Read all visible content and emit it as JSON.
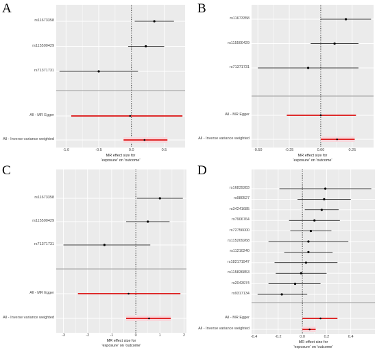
{
  "chart_data": [
    {
      "panel": "A",
      "type": "forest",
      "snps": [
        {
          "label": "rs11673358",
          "est": 0.35,
          "lo": 0.05,
          "hi": 0.65
        },
        {
          "label": "rs115500429",
          "est": 0.22,
          "lo": -0.05,
          "hi": 0.5
        },
        {
          "label": "rs71371731",
          "est": -0.5,
          "lo": -1.1,
          "hi": 0.1
        }
      ],
      "summary": [
        {
          "label": "All - MR Egger",
          "est": -0.02,
          "lo": -0.92,
          "hi": 0.78
        },
        {
          "label": "All - Inverse variance weighted",
          "est": 0.2,
          "lo": -0.12,
          "hi": 0.55
        }
      ],
      "xlim": [
        -1.15,
        0.82
      ],
      "xticks": [
        -1.0,
        -0.5,
        0.0,
        0.5
      ],
      "xtick_labels": [
        "-1.0",
        "-0.5",
        "0.0",
        "0.5"
      ],
      "xlabel_line1": "MR effect size for",
      "xlabel_line2": "'exposure' on 'outcome'"
    },
    {
      "panel": "B",
      "type": "forest",
      "snps": [
        {
          "label": "rs11673358",
          "est": 0.2,
          "lo": 0.0,
          "hi": 0.4
        },
        {
          "label": "rs115500429",
          "est": 0.11,
          "lo": -0.08,
          "hi": 0.3
        },
        {
          "label": "rs71371731",
          "est": -0.1,
          "lo": -0.5,
          "hi": 0.3
        }
      ],
      "summary": [
        {
          "label": "All - MR Egger",
          "est": 0.0,
          "lo": -0.27,
          "hi": 0.28
        },
        {
          "label": "All - Inverse variance weighted",
          "est": 0.13,
          "lo": 0.0,
          "hi": 0.27
        }
      ],
      "xlim": [
        -0.55,
        0.42
      ],
      "xticks": [
        -0.5,
        -0.25,
        0.0,
        0.25
      ],
      "xtick_labels": [
        "-0.50",
        "-0.25",
        "0.00",
        "0.25"
      ],
      "xlabel_line1": "MR effect size for",
      "xlabel_line2": "'exposure' on 'outcome'"
    },
    {
      "panel": "C",
      "type": "forest",
      "snps": [
        {
          "label": "rs11673358",
          "est": 1.0,
          "lo": 0.05,
          "hi": 1.95
        },
        {
          "label": "rs115500429",
          "est": 0.5,
          "lo": -0.4,
          "hi": 1.4
        },
        {
          "label": "rs71371731",
          "est": -1.3,
          "lo": -3.0,
          "hi": 0.6
        }
      ],
      "summary": [
        {
          "label": "All - MR Egger",
          "est": -0.3,
          "lo": -2.4,
          "hi": 1.85
        },
        {
          "label": "All - Inverse variance weighted",
          "est": 0.55,
          "lo": -0.4,
          "hi": 1.45
        }
      ],
      "xlim": [
        -3.3,
        2.1
      ],
      "xticks": [
        -3,
        -2,
        -1,
        0,
        1,
        2
      ],
      "xtick_labels": [
        "-3",
        "-2",
        "-1",
        "0",
        "1",
        "2"
      ],
      "xlabel_line1": "MR effect size for",
      "xlabel_line2": "'exposure' on 'outcome'"
    },
    {
      "panel": "D",
      "type": "forest",
      "snps": [
        {
          "label": "rs16839283",
          "est": 0.19,
          "lo": -0.19,
          "hi": 0.57
        },
        {
          "label": "rs980527",
          "est": 0.18,
          "lo": -0.04,
          "hi": 0.4
        },
        {
          "label": "rs34241685",
          "est": 0.16,
          "lo": 0.02,
          "hi": 0.3
        },
        {
          "label": "rs7906764",
          "est": 0.1,
          "lo": -0.11,
          "hi": 0.31
        },
        {
          "label": "rs72756000",
          "est": 0.07,
          "lo": -0.1,
          "hi": 0.24
        },
        {
          "label": "rs115209268",
          "est": 0.05,
          "lo": -0.28,
          "hi": 0.38
        },
        {
          "label": "rs11210240",
          "est": 0.05,
          "lo": -0.15,
          "hi": 0.25
        },
        {
          "label": "rs182171947",
          "est": 0.03,
          "lo": -0.23,
          "hi": 0.29
        },
        {
          "label": "rs115836853",
          "est": -0.01,
          "lo": -0.22,
          "hi": 0.2
        },
        {
          "label": "rs2043974",
          "est": -0.06,
          "lo": -0.28,
          "hi": 0.15
        },
        {
          "label": "rs9317134",
          "est": -0.17,
          "lo": -0.37,
          "hi": 0.04
        }
      ],
      "summary": [
        {
          "label": "All - MR Egger",
          "est": 0.15,
          "lo": 0.0,
          "hi": 0.29
        },
        {
          "label": "All - Inverse variance weighted",
          "est": 0.06,
          "lo": 0.0,
          "hi": 0.11
        }
      ],
      "xlim": [
        -0.42,
        0.6
      ],
      "xticks": [
        -0.4,
        -0.2,
        0.0,
        0.2,
        0.4
      ],
      "xtick_labels": [
        "-0.4",
        "-0.2",
        "0.0",
        "0.2",
        "0.4"
      ],
      "xlabel_line1": "MR effect size for",
      "xlabel_line2": "'exposure' on 'outcome'"
    }
  ],
  "colors": {
    "plot_bg": "#ebebeb",
    "grid": "#ffffff",
    "point": "#000000",
    "ci_line": "#000000",
    "summary": "#dd1111",
    "highlight": "#f8d7dc",
    "separator": "#aaaaaa"
  }
}
